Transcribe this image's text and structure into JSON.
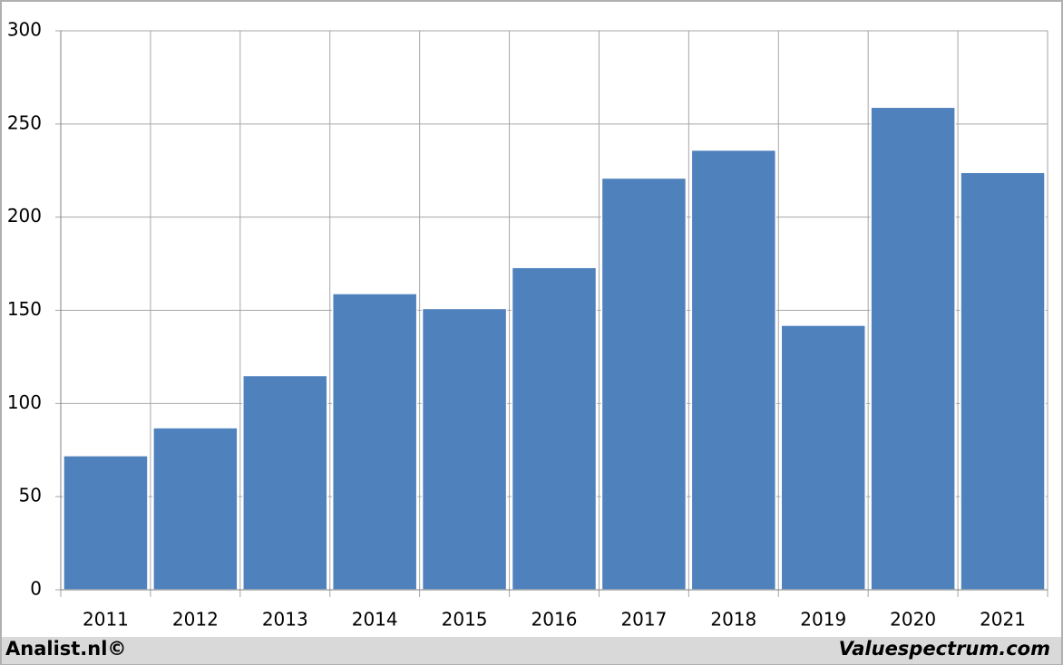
{
  "chart_data": {
    "type": "bar",
    "categories": [
      "2011",
      "2012",
      "2013",
      "2014",
      "2015",
      "2016",
      "2017",
      "2018",
      "2019",
      "2020",
      "2021"
    ],
    "values": [
      72,
      87,
      115,
      159,
      151,
      173,
      221,
      236,
      142,
      259,
      224
    ],
    "color": "#4f81bd",
    "ylim": [
      0,
      300
    ],
    "yticks": [
      0,
      50,
      100,
      150,
      200,
      250,
      300
    ],
    "grid": true
  },
  "footer": {
    "left": "Analist.nl©",
    "right": "Valuespectrum.com"
  }
}
